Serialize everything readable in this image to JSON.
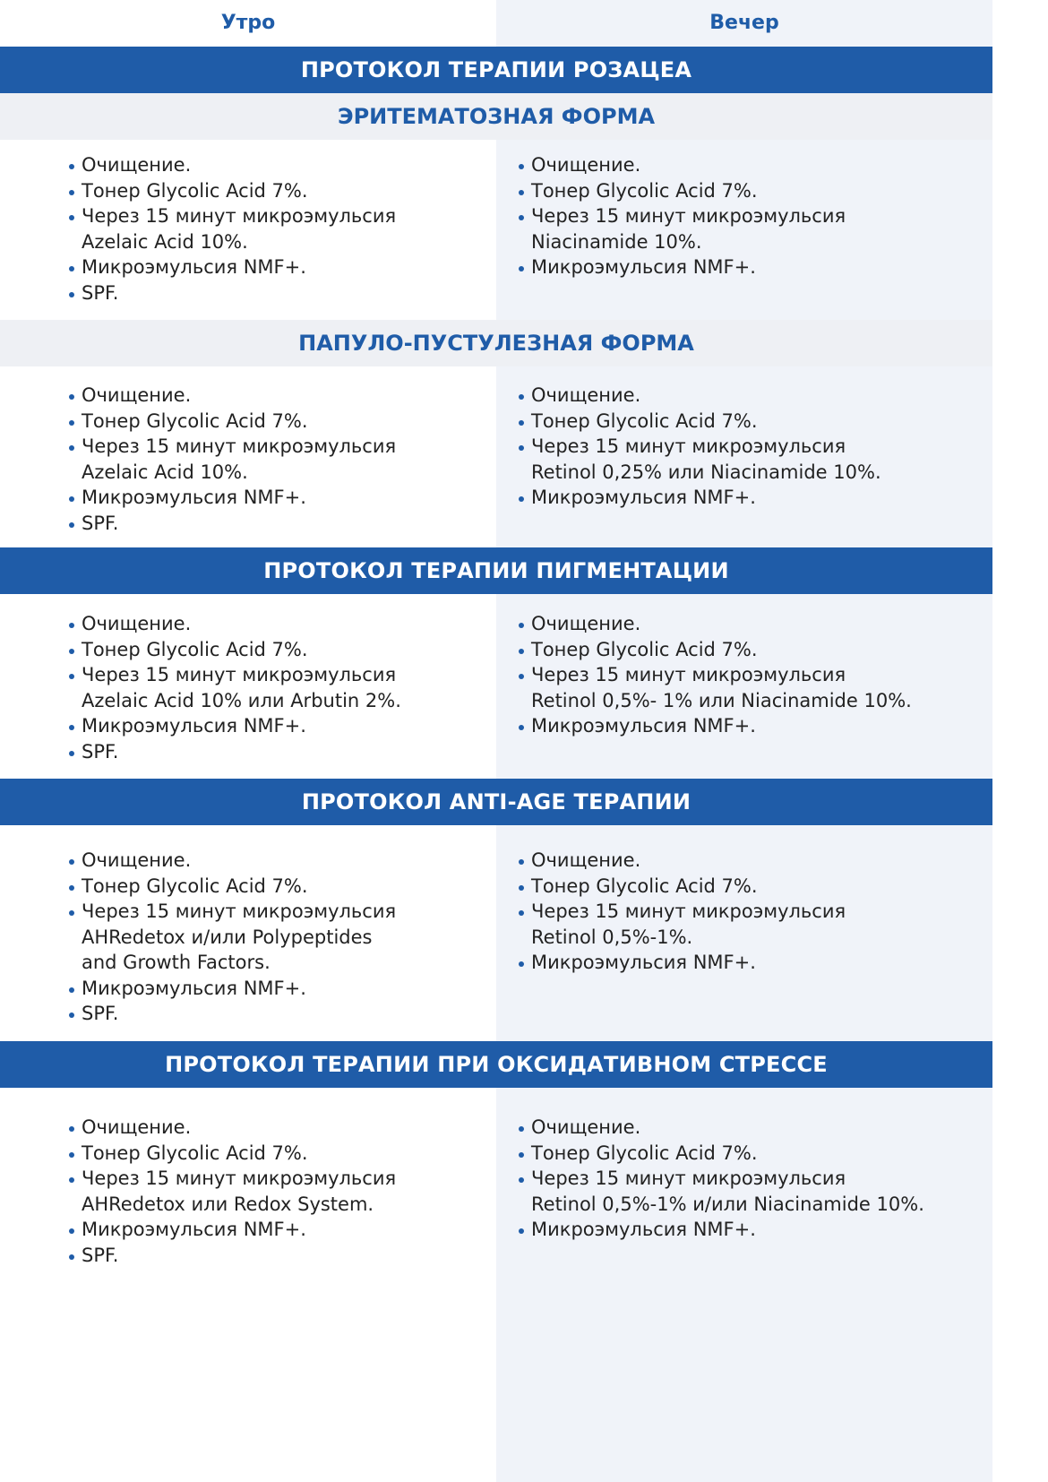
{
  "header": {
    "morning": "Утро",
    "evening": "Вечер"
  },
  "colors": {
    "accent": "#1f5ca8",
    "band_grey": "#eef0f4",
    "evening_bg": "#f0f3f9"
  },
  "sections": [
    {
      "band": "ПРОТОКОЛ ТЕРАПИИ РОЗАЦЕА",
      "sub": "ЭРИТЕМАТОЗНАЯ ФОРМА",
      "morning": [
        "Очищение.",
        "Тонер Glycolic Acid 7%.",
        "Через 15 минут микроэмульсия\nAzelaic Acid 10%.",
        "Микроэмульсия NMF+.",
        "SPF."
      ],
      "evening": [
        "Очищение.",
        "Тонер Glycolic Acid 7%.",
        "Через 15 минут микроэмульсия\nNiacinamide 10%.",
        "Микроэмульсия NMF+."
      ]
    },
    {
      "sub": "ПАПУЛО-ПУСТУЛЕЗНАЯ ФОРМА",
      "morning": [
        "Очищение.",
        "Тонер Glycolic Acid 7%.",
        "Через 15 минут микроэмульсия\nAzelaic Acid 10%.",
        "Микроэмульсия NMF+.",
        "SPF."
      ],
      "evening": [
        "Очищение.",
        "Тонер Glycolic Acid 7%.",
        "Через 15 минут микроэмульсия\nRetinol 0,25% или Niacinamide 10%.",
        "Микроэмульсия NMF+."
      ]
    },
    {
      "band": "ПРОТОКОЛ ТЕРАПИИ ПИГМЕНТАЦИИ",
      "morning": [
        "Очищение.",
        "Тонер Glycolic Acid 7%.",
        "Через 15 минут микроэмульсия\nAzelaic Acid 10% или Arbutin 2%.",
        "Микроэмульсия NMF+.",
        "SPF."
      ],
      "evening": [
        "Очищение.",
        "Тонер Glycolic Acid 7%.",
        "Через 15 минут микроэмульсия\nRetinol 0,5%- 1% или Niacinamide 10%.",
        "Микроэмульсия NMF+."
      ]
    },
    {
      "band": "ПРОТОКОЛ ANTI-AGE ТЕРАПИИ",
      "morning": [
        "Очищение.",
        "Тонер Glycolic Acid 7%.",
        "Через 15 минут микроэмульсия\nAHRedetox и/или Polypeptides\nand Growth Factors.",
        "Микроэмульсия NMF+.",
        "SPF."
      ],
      "evening": [
        "Очищение.",
        "Тонер Glycolic Acid 7%.",
        "Через 15 минут микроэмульсия\nRetinol 0,5%-1%.",
        "Микроэмульсия NMF+."
      ]
    },
    {
      "band": "ПРОТОКОЛ ТЕРАПИИ ПРИ ОКСИДАТИВНОМ СТРЕССЕ",
      "morning": [
        "Очищение.",
        "Тонер Glycolic Acid 7%.",
        "Через 15 минут микроэмульсия\nAHRedetox или Redox System.",
        "Микроэмульсия NMF+.",
        "SPF."
      ],
      "evening": [
        "Очищение.",
        "Тонер Glycolic Acid 7%.",
        "Через 15 минут микроэмульсия\nRetinol 0,5%-1% и/или Niacinamide 10%.",
        "Микроэмульсия NMF+."
      ]
    }
  ]
}
